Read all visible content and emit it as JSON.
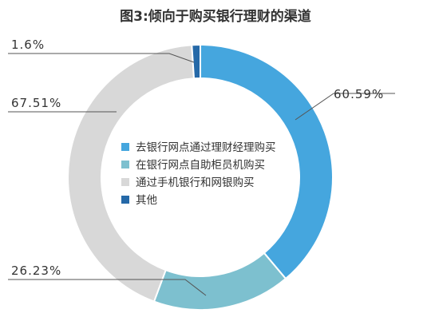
{
  "chart_data": {
    "type": "pie",
    "title": "图3:倾向于购买银行理财的渠道",
    "categories": [
      "去银行网点通过理财经理购买",
      "在银行网点自助柜员机购买",
      "通过手机银行和网银购买",
      "其他"
    ],
    "values": [
      60.59,
      26.23,
      67.51,
      1.6
    ],
    "value_labels": [
      "60.59%",
      "26.23%",
      "67.51%",
      "1.6%"
    ],
    "colors": [
      "#45A6DE",
      "#7DC0CF",
      "#D8D8D8",
      "#2569A8"
    ],
    "legend_placement": "center"
  }
}
